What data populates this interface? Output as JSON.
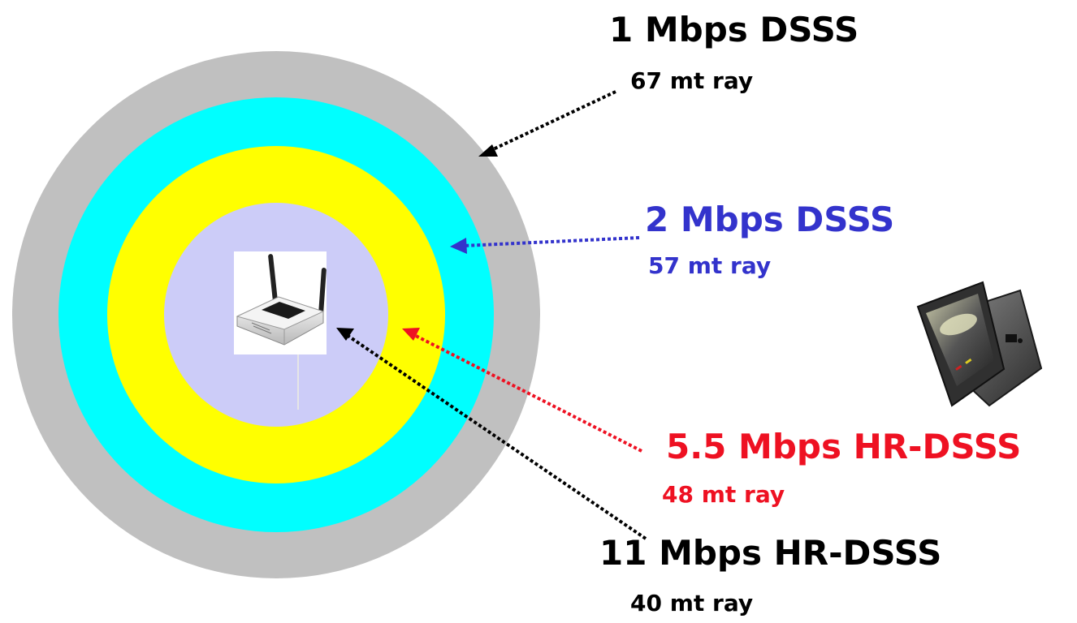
{
  "rates": [
    {
      "rate": "1 Mbps DSSS",
      "range": "67 mt ray",
      "color": "#000000",
      "zone_color": "#c0c0c0"
    },
    {
      "rate": "2 Mbps DSSS",
      "range": "57 mt ray",
      "color": "#3333cc",
      "zone_color": "#00ffff"
    },
    {
      "rate": "5.5 Mbps HR-DSSS",
      "range": "48 mt ray",
      "color": "#ee1122",
      "zone_color": "#ffff00"
    },
    {
      "rate": "11 Mbps HR-DSSS",
      "range": "40 mt ray",
      "color": "#000000",
      "zone_color": "#ccccf8"
    }
  ],
  "icons": {
    "access_point": "wireless-router-icon",
    "client": "laptop-icon"
  }
}
